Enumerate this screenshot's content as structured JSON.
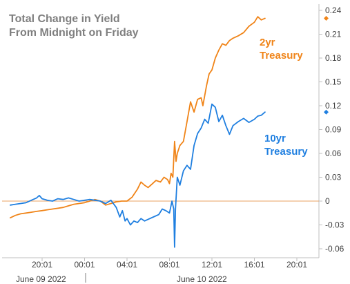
{
  "chart_data": {
    "type": "line",
    "title_lines": [
      "Total Change in Yield",
      "From Midnight on Friday"
    ],
    "x_ticks": [
      "20:01",
      "00:01",
      "04:01",
      "08:01",
      "12:01",
      "16:01",
      "20:01"
    ],
    "x_dates": [
      "June 09 2022",
      "June 10 2022"
    ],
    "y_ticks": [
      "0.24",
      "0.21",
      "0.18",
      "0.15",
      "0.12",
      "0.09",
      "0.06",
      "0.03",
      "0",
      "-0.03",
      "-0.06"
    ],
    "ylim": [
      -0.06,
      0.24
    ],
    "grid": false,
    "zero_line_color": "#e8a060",
    "series": [
      {
        "label_lines": [
          "2yr",
          "Treasury"
        ],
        "color": "#f08418",
        "end_value": 0.23,
        "points": [
          [
            "17:01",
            -0.021
          ],
          [
            "17:30",
            -0.018
          ],
          [
            "18:00",
            -0.016
          ],
          [
            "18:30",
            -0.015
          ],
          [
            "19:00",
            -0.014
          ],
          [
            "19:30",
            -0.013
          ],
          [
            "20:01",
            -0.012
          ],
          [
            "20:30",
            -0.011
          ],
          [
            "21:00",
            -0.01
          ],
          [
            "21:30",
            -0.009
          ],
          [
            "22:00",
            -0.008
          ],
          [
            "22:30",
            -0.006
          ],
          [
            "23:00",
            -0.004
          ],
          [
            "23:30",
            -0.003
          ],
          [
            "00:01",
            -0.002
          ],
          [
            "00:30",
            0.0
          ],
          [
            "01:00",
            0.002
          ],
          [
            "01:30",
            0.0
          ],
          [
            "02:00",
            -0.005
          ],
          [
            "02:30",
            -0.003
          ],
          [
            "03:00",
            -0.001
          ],
          [
            "03:30",
            0.0
          ],
          [
            "04:01",
            0.0
          ],
          [
            "04:30",
            0.005
          ],
          [
            "05:00",
            0.015
          ],
          [
            "05:20",
            0.024
          ],
          [
            "05:40",
            0.02
          ],
          [
            "06:00",
            0.017
          ],
          [
            "06:20",
            0.021
          ],
          [
            "06:45",
            0.026
          ],
          [
            "07:10",
            0.024
          ],
          [
            "07:30",
            0.03
          ],
          [
            "07:50",
            0.027
          ],
          [
            "08:01",
            0.022
          ],
          [
            "08:10",
            0.035
          ],
          [
            "08:20",
            0.03
          ],
          [
            "08:30",
            0.075
          ],
          [
            "08:38",
            0.05
          ],
          [
            "08:45",
            0.06
          ],
          [
            "09:00",
            0.07
          ],
          [
            "09:20",
            0.075
          ],
          [
            "09:40",
            0.1
          ],
          [
            "10:00",
            0.125
          ],
          [
            "10:20",
            0.112
          ],
          [
            "10:40",
            0.128
          ],
          [
            "11:00",
            0.13
          ],
          [
            "11:10",
            0.12
          ],
          [
            "11:30",
            0.145
          ],
          [
            "11:45",
            0.16
          ],
          [
            "12:01",
            0.165
          ],
          [
            "12:20",
            0.18
          ],
          [
            "12:40",
            0.19
          ],
          [
            "13:00",
            0.198
          ],
          [
            "13:20",
            0.196
          ],
          [
            "13:40",
            0.202
          ],
          [
            "14:00",
            0.205
          ],
          [
            "14:30",
            0.208
          ],
          [
            "15:00",
            0.212
          ],
          [
            "15:30",
            0.22
          ],
          [
            "16:01",
            0.225
          ],
          [
            "16:20",
            0.232
          ],
          [
            "16:40",
            0.228
          ],
          [
            "17:01",
            0.23
          ]
        ]
      },
      {
        "label_lines": [
          "10yr",
          "Treasury"
        ],
        "color": "#1f7fe0",
        "end_value": 0.112,
        "points": [
          [
            "17:01",
            -0.005
          ],
          [
            "17:30",
            -0.004
          ],
          [
            "18:00",
            -0.003
          ],
          [
            "18:30",
            -0.002
          ],
          [
            "19:00",
            0.001
          ],
          [
            "19:30",
            0.004
          ],
          [
            "19:45",
            0.007
          ],
          [
            "20:01",
            0.003
          ],
          [
            "20:30",
            0.001
          ],
          [
            "21:00",
            0.0
          ],
          [
            "21:30",
            0.003
          ],
          [
            "22:00",
            0.002
          ],
          [
            "22:30",
            0.004
          ],
          [
            "23:00",
            0.002
          ],
          [
            "23:30",
            0.0
          ],
          [
            "00:01",
            0.001
          ],
          [
            "00:30",
            0.002
          ],
          [
            "01:00",
            0.001
          ],
          [
            "01:30",
            0.0
          ],
          [
            "02:00",
            -0.003
          ],
          [
            "02:30",
            0.001
          ],
          [
            "03:00",
            -0.008
          ],
          [
            "03:20",
            -0.02
          ],
          [
            "03:35",
            -0.012
          ],
          [
            "03:50",
            -0.025
          ],
          [
            "04:01",
            -0.022
          ],
          [
            "04:20",
            -0.03
          ],
          [
            "04:40",
            -0.025
          ],
          [
            "05:00",
            -0.027
          ],
          [
            "05:20",
            -0.022
          ],
          [
            "05:40",
            -0.025
          ],
          [
            "06:00",
            -0.023
          ],
          [
            "06:30",
            -0.02
          ],
          [
            "07:00",
            -0.017
          ],
          [
            "07:20",
            -0.01
          ],
          [
            "07:40",
            -0.012
          ],
          [
            "08:01",
            -0.015
          ],
          [
            "08:15",
            0.0
          ],
          [
            "08:25",
            -0.01
          ],
          [
            "08:30",
            -0.058
          ],
          [
            "08:35",
            -0.01
          ],
          [
            "08:45",
            0.03
          ],
          [
            "09:00",
            0.02
          ],
          [
            "09:20",
            0.038
          ],
          [
            "09:40",
            0.045
          ],
          [
            "10:00",
            0.04
          ],
          [
            "10:20",
            0.07
          ],
          [
            "10:40",
            0.085
          ],
          [
            "11:00",
            0.092
          ],
          [
            "11:20",
            0.103
          ],
          [
            "11:40",
            0.098
          ],
          [
            "12:01",
            0.122
          ],
          [
            "12:20",
            0.118
          ],
          [
            "12:40",
            0.1
          ],
          [
            "13:00",
            0.108
          ],
          [
            "13:20",
            0.095
          ],
          [
            "13:40",
            0.084
          ],
          [
            "14:00",
            0.095
          ],
          [
            "14:30",
            0.1
          ],
          [
            "15:00",
            0.104
          ],
          [
            "15:30",
            0.099
          ],
          [
            "16:01",
            0.103
          ],
          [
            "16:20",
            0.107
          ],
          [
            "16:40",
            0.108
          ],
          [
            "17:01",
            0.112
          ]
        ]
      }
    ]
  }
}
